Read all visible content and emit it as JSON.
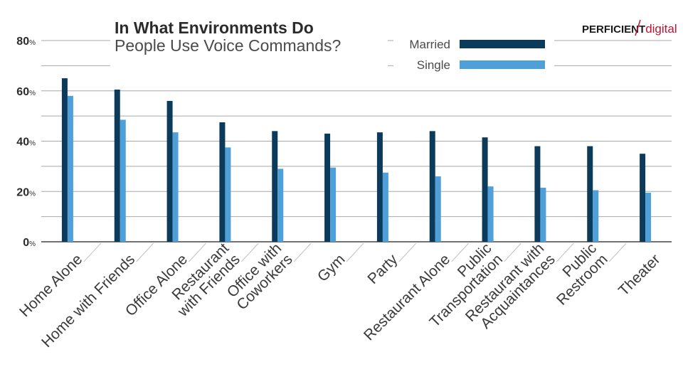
{
  "logo": {
    "brand": "PERFICIENT",
    "suffix": "digital",
    "accent_color": "#c8102e"
  },
  "chart_data": {
    "type": "bar",
    "title_line1": "In What Environments Do",
    "title_line2": "People Use Voice Commands?",
    "xlabel": "",
    "ylabel": "",
    "ylim": [
      0,
      80
    ],
    "y_ticks": [
      0,
      20,
      40,
      60,
      80
    ],
    "y_tick_suffix": "%",
    "grid": true,
    "legend_position": "top-right",
    "categories": [
      "Home Alone",
      "Home with Friends",
      "Office Alone",
      "Restaurant with Friends",
      "Office with Coworkers",
      "Gym",
      "Party",
      "Restaurant Alone",
      "Public Transportation",
      "Restaurant with Acquaintances",
      "Public Restroom",
      "Theater"
    ],
    "category_label_lines": [
      [
        "Home Alone"
      ],
      [
        "Home with Friends"
      ],
      [
        "Office Alone"
      ],
      [
        "Restaurant",
        "with Friends"
      ],
      [
        "Office with",
        "Coworkers"
      ],
      [
        "Gym"
      ],
      [
        "Party"
      ],
      [
        "Restaurant Alone"
      ],
      [
        "Public",
        "Transportation"
      ],
      [
        "Restaurant with",
        "Acquaintances"
      ],
      [
        "Public",
        "Restroom"
      ],
      [
        "Theater"
      ]
    ],
    "series": [
      {
        "name": "Married",
        "color": "#0b3a5b",
        "values": [
          65,
          60.5,
          56,
          47.5,
          44,
          43,
          43.5,
          44,
          41.5,
          38,
          38,
          35
        ]
      },
      {
        "name": "Single",
        "color": "#4f9fd8",
        "values": [
          58,
          48.5,
          43.5,
          37.5,
          29,
          29.5,
          27.5,
          26,
          22,
          21.5,
          20.5,
          19.5
        ]
      }
    ]
  }
}
